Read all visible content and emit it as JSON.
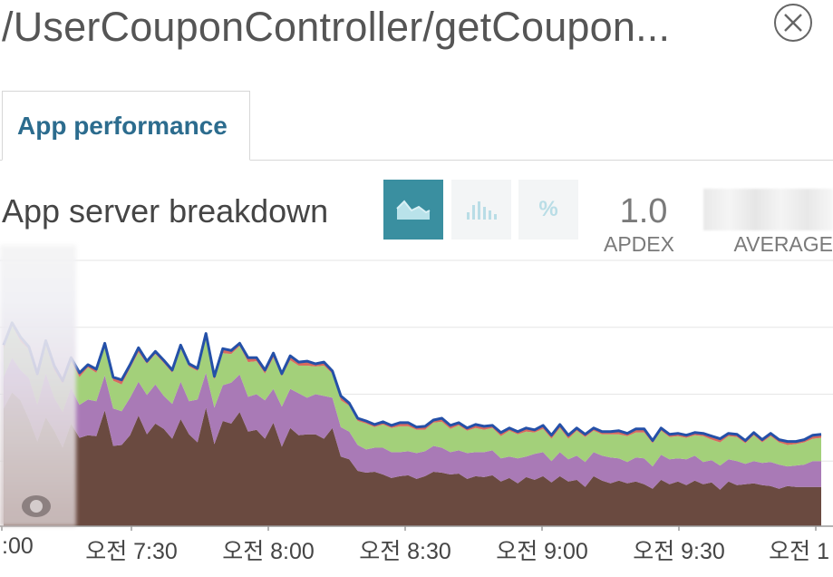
{
  "header": {
    "title": "/UserCouponController/getCoupon...",
    "close_icon": "close-circle-icon"
  },
  "tabs": [
    {
      "label": "App performance",
      "active": true
    }
  ],
  "section": {
    "title": "App server breakdown",
    "view_buttons": [
      {
        "icon": "area-chart-icon",
        "active": true
      },
      {
        "icon": "histogram-icon",
        "active": false
      },
      {
        "icon": "percent-icon",
        "label": "%",
        "active": false
      }
    ]
  },
  "stats": {
    "apdex_value": "1.0",
    "apdex_label": "APDEX",
    "average_label": "AVERAGE"
  },
  "colors": {
    "tab_text": "#2c6c8e",
    "active_button": "#3a8fa0",
    "series_brown": "#6a4a40",
    "series_purple": "#a97ab6",
    "series_green": "#a3d07a",
    "series_red": "#d86a5e",
    "series_outline": "#2450a8"
  },
  "chart_data": {
    "type": "area",
    "x_tick_labels": [
      ":00",
      "오전 7:30",
      "오전 8:00",
      "오전 8:30",
      "오전 9:00",
      "오전 9:30",
      "오전 1"
    ],
    "y_range": [
      0,
      300
    ],
    "grid": true,
    "stacked": true,
    "series_colors": [
      "#6a4a40",
      "#a97ab6",
      "#a3d07a",
      "#d86a5e"
    ],
    "series": [
      {
        "values": [
          132,
          150,
          141,
          120,
          95,
          122,
          107,
          88,
          115,
          99,
          102,
          101,
          130,
          90,
          91,
          102,
          124,
          103,
          115,
          109,
          98,
          120,
          103,
          94,
          133,
          92,
          118,
          115,
          128,
          106,
          108,
          98,
          116,
          89,
          110,
          102,
          103,
          103,
          98,
          110,
          78,
          75,
          62,
          60,
          61,
          58,
          54,
          56,
          57,
          53,
          56,
          61,
          60,
          58,
          59,
          53,
          56,
          55,
          57,
          50,
          54,
          48,
          55,
          52,
          56,
          49,
          56,
          50,
          52,
          44,
          56,
          51,
          48,
          51,
          48,
          50,
          47,
          42,
          52,
          47,
          50,
          46,
          51,
          47,
          49,
          41,
          50,
          46,
          47,
          48,
          46,
          45,
          42,
          45,
          44,
          44,
          44,
          44
        ]
      },
      {
        "values": [
          35,
          39,
          34,
          46,
          41,
          49,
          37,
          40,
          40,
          37,
          40,
          39,
          39,
          42,
          38,
          42,
          38,
          44,
          44,
          37,
          39,
          42,
          37,
          48,
          39,
          41,
          40,
          46,
          42,
          39,
          40,
          43,
          38,
          45,
          44,
          47,
          41,
          45,
          48,
          34,
          33,
          31,
          29,
          26,
          27,
          30,
          29,
          27,
          27,
          29,
          28,
          29,
          28,
          25,
          26,
          29,
          27,
          28,
          28,
          26,
          24,
          28,
          23,
          29,
          27,
          24,
          27,
          25,
          27,
          28,
          27,
          28,
          29,
          25,
          24,
          27,
          29,
          25,
          28,
          28,
          26,
          29,
          28,
          25,
          25,
          27,
          25,
          27,
          23,
          25,
          25,
          27,
          27,
          22,
          24,
          25,
          29,
          29
        ]
      },
      {
        "values": [
          32,
          36,
          32,
          32,
          32,
          32,
          31,
          32,
          30,
          31,
          36,
          32,
          33,
          31,
          30,
          33,
          33,
          35,
          34,
          37,
          35,
          37,
          39,
          32,
          40,
          31,
          36,
          32,
          32,
          39,
          37,
          30,
          35,
          34,
          32,
          31,
          36,
          31,
          34,
          27,
          30,
          29,
          27,
          29,
          23,
          26,
          27,
          29,
          28,
          26,
          24,
          26,
          29,
          26,
          28,
          25,
          27,
          25,
          25,
          25,
          29,
          27,
          28,
          24,
          26,
          25,
          27,
          23,
          28,
          28,
          24,
          24,
          26,
          27,
          29,
          28,
          29,
          26,
          27,
          25,
          25,
          24,
          23,
          29,
          23,
          26,
          26,
          27,
          23,
          29,
          23,
          29,
          25,
          24,
          24,
          25,
          25,
          26
        ]
      },
      {
        "values": [
          4,
          3,
          5,
          3,
          3,
          5,
          5,
          3,
          4,
          5,
          3,
          4,
          3,
          4,
          5,
          4,
          5,
          3,
          3,
          3,
          3,
          4,
          3,
          3,
          4,
          4,
          5,
          4,
          3,
          5,
          4,
          4,
          5,
          3,
          5,
          4,
          5,
          3,
          4,
          3,
          5,
          3,
          3,
          3,
          3,
          3,
          3,
          4,
          4,
          3,
          4,
          3,
          4,
          4,
          3,
          3,
          4,
          4,
          3,
          4,
          3,
          3,
          4,
          3,
          4,
          4,
          4,
          4,
          3,
          3,
          3,
          3,
          3,
          4,
          3,
          4,
          4,
          3,
          3,
          3,
          3,
          3,
          3,
          3,
          4,
          4,
          3,
          3,
          3,
          3,
          3,
          3,
          3,
          4,
          3,
          3,
          4,
          4
        ]
      }
    ]
  }
}
